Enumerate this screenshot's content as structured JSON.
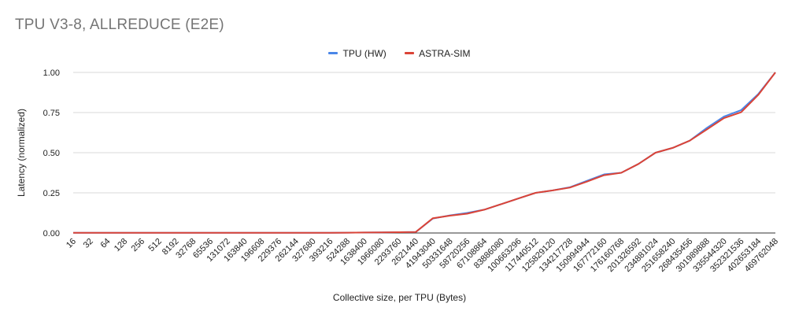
{
  "chart_data": {
    "type": "line",
    "title": "TPU V3-8, ALLREDUCE (E2E)",
    "xlabel": "Collective size, per TPU (Bytes)",
    "ylabel": "Latency (normalized)",
    "ylim": [
      0,
      1
    ],
    "yticks": [
      "0.00",
      "0.25",
      "0.50",
      "0.75",
      "1.00"
    ],
    "grid": "horizontal",
    "legend": "top-center",
    "categories": [
      "16",
      "32",
      "64",
      "128",
      "256",
      "512",
      "8192",
      "32768",
      "65536",
      "131072",
      "163840",
      "196608",
      "229376",
      "262144",
      "327680",
      "393216",
      "524288",
      "1638400",
      "1966080",
      "2293760",
      "2621440",
      "41943040",
      "50331648",
      "58720256",
      "67108864",
      "83886080",
      "100663296",
      "117440512",
      "125829120",
      "134217728",
      "150994944",
      "167772160",
      "176160768",
      "201326592",
      "234881024",
      "251658240",
      "268435456",
      "301989888",
      "335544320",
      "352321536",
      "402653184",
      "469762048"
    ],
    "series": [
      {
        "name": "TPU (HW)",
        "color": "#4a86e8",
        "values": [
          0.001,
          0.001,
          0.001,
          0.001,
          0.001,
          0.001,
          0.001,
          0.001,
          0.001,
          0.001,
          0.001,
          0.001,
          0.001,
          0.001,
          0.001,
          0.001,
          0.002,
          0.003,
          0.004,
          0.005,
          0.006,
          0.09,
          0.11,
          0.125,
          0.145,
          0.18,
          0.215,
          0.25,
          0.265,
          0.285,
          0.325,
          0.365,
          0.375,
          0.43,
          0.5,
          0.53,
          0.575,
          0.655,
          0.725,
          0.765,
          0.865,
          1.0
        ]
      },
      {
        "name": "ASTRA-SIM",
        "color": "#db4437",
        "values": [
          0.001,
          0.001,
          0.001,
          0.001,
          0.001,
          0.001,
          0.001,
          0.001,
          0.001,
          0.001,
          0.001,
          0.001,
          0.001,
          0.001,
          0.001,
          0.001,
          0.002,
          0.003,
          0.004,
          0.005,
          0.006,
          0.092,
          0.108,
          0.12,
          0.145,
          0.18,
          0.215,
          0.25,
          0.265,
          0.283,
          0.32,
          0.36,
          0.375,
          0.43,
          0.5,
          0.53,
          0.575,
          0.645,
          0.715,
          0.752,
          0.86,
          1.0
        ]
      }
    ]
  }
}
